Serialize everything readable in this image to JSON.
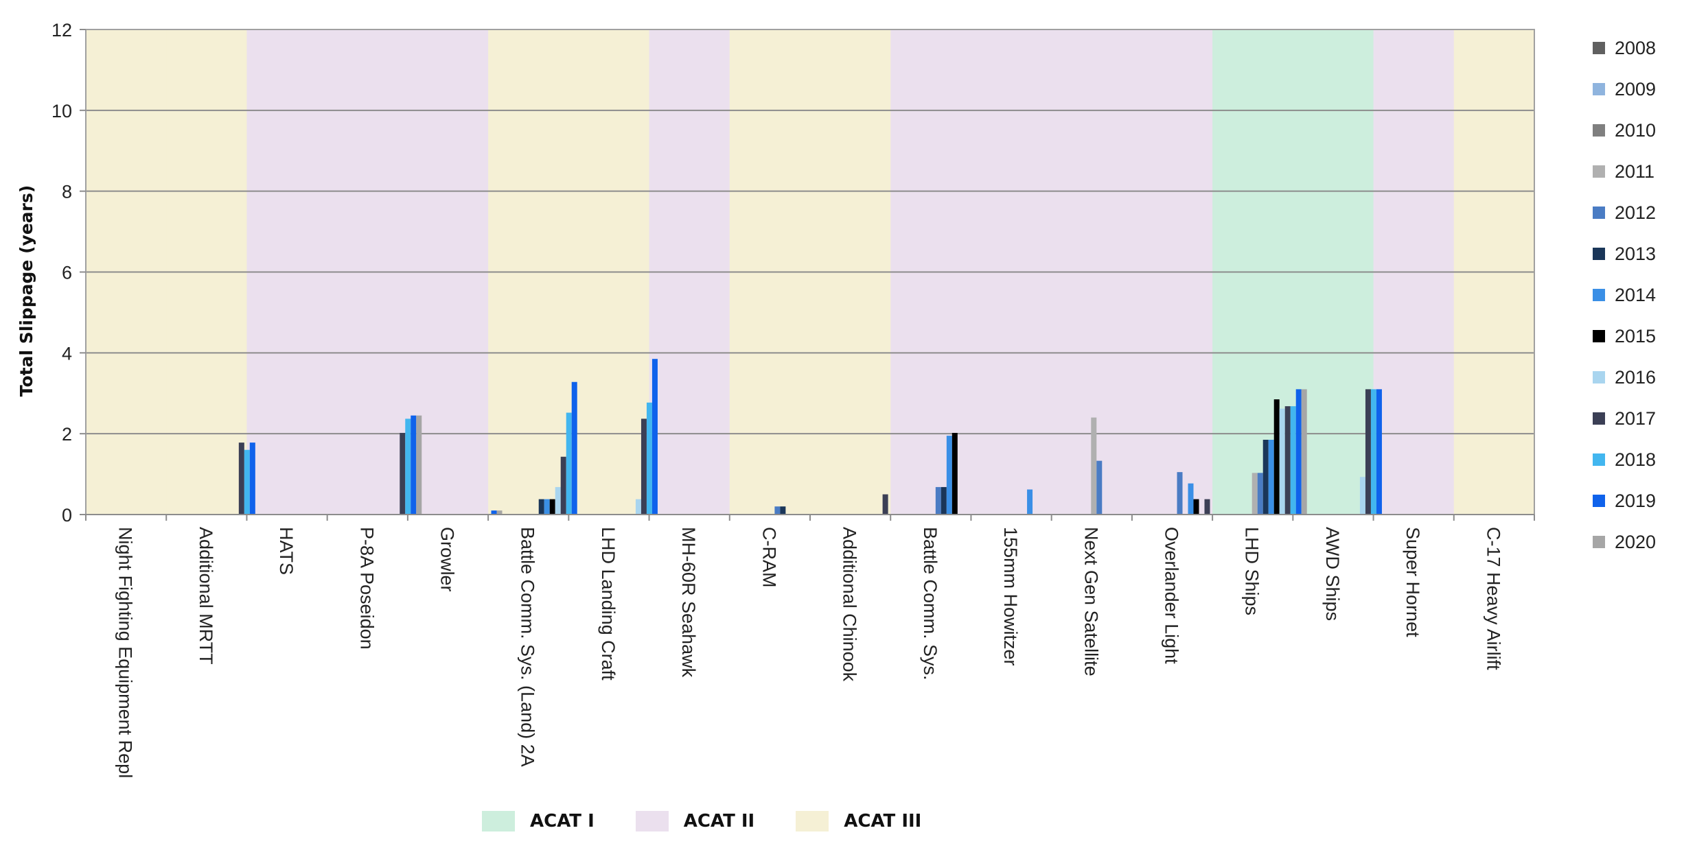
{
  "chart_data": {
    "type": "bar",
    "title": "",
    "xlabel": "",
    "ylabel": "Total Slippage (years)",
    "ylim": [
      0,
      12
    ],
    "yticks": [
      0,
      2,
      4,
      6,
      8,
      10,
      12
    ],
    "grid": true,
    "legend_position": "right",
    "categories": [
      "Night Fighting Equipment Repl",
      "Additional MRTT",
      "HATS",
      "P-8A Poseidon",
      "Growler",
      "Battle Comm. Sys. (Land) 2A",
      "LHD Landing Craft",
      "MH-60R Seahawk",
      "C-RAM",
      "Additional Chinook",
      "Battle Comm. Sys.",
      "155mm Howitzer",
      "Next Gen Satellite",
      "Overlander Light",
      "LHD Ships",
      "AWD Ships",
      "Super Hornet",
      "C-17 Heavy Airlift"
    ],
    "category_acat": [
      "ACAT III",
      "ACAT III",
      "ACAT II",
      "ACAT II",
      "ACAT II",
      "ACAT III",
      "ACAT III",
      "ACAT II",
      "ACAT III",
      "ACAT III",
      "ACAT II",
      "ACAT II",
      "ACAT II",
      "ACAT II",
      "ACAT I",
      "ACAT I",
      "ACAT II",
      "ACAT III"
    ],
    "series": [
      {
        "name": "2008",
        "color": "#606060",
        "values": [
          0,
          0,
          0,
          0,
          0,
          0,
          0,
          0,
          0,
          0,
          0,
          0,
          0,
          0,
          0,
          0,
          0,
          0
        ]
      },
      {
        "name": "2009",
        "color": "#8fb4de",
        "values": [
          0,
          0,
          0,
          0,
          0,
          0,
          0,
          0,
          0,
          0,
          0,
          0,
          0,
          0,
          0,
          0,
          0,
          0
        ]
      },
      {
        "name": "2010",
        "color": "#7f7f7f",
        "values": [
          0,
          0,
          0,
          0,
          0,
          0,
          0,
          0,
          0,
          0,
          0,
          0,
          0,
          0,
          0,
          0,
          0,
          0
        ]
      },
      {
        "name": "2011",
        "color": "#b0b0b0",
        "values": [
          0,
          0,
          0,
          0,
          0,
          0,
          0,
          0,
          0,
          0,
          0,
          0,
          2.4,
          0,
          1.03,
          0,
          0,
          0
        ]
      },
      {
        "name": "2012",
        "color": "#4a7cc4",
        "values": [
          0,
          0,
          0,
          0,
          0,
          0,
          0,
          0,
          0.2,
          0,
          0.68,
          0,
          1.33,
          1.05,
          1.03,
          0,
          0,
          0
        ]
      },
      {
        "name": "2013",
        "color": "#1a3659",
        "values": [
          0,
          0,
          0,
          0,
          0,
          0.38,
          0,
          0,
          0.2,
          0,
          0.68,
          0,
          0,
          0,
          1.85,
          0,
          0,
          0
        ]
      },
      {
        "name": "2014",
        "color": "#3a8fe6",
        "values": [
          0,
          0,
          0,
          0,
          0,
          0.38,
          0,
          0,
          0,
          0,
          1.95,
          0.62,
          0,
          0.77,
          1.85,
          0,
          0,
          0
        ]
      },
      {
        "name": "2015",
        "color": "#000000",
        "values": [
          0,
          0,
          0,
          0,
          0,
          0.38,
          0,
          0,
          0,
          0,
          2.02,
          0,
          0,
          0.38,
          2.85,
          0,
          0,
          0
        ]
      },
      {
        "name": "2016",
        "color": "#a9d5ef",
        "values": [
          0,
          0,
          0,
          0,
          0,
          0.68,
          0.38,
          0,
          0,
          0,
          0,
          0,
          0,
          0,
          2.62,
          0.93,
          0,
          0
        ]
      },
      {
        "name": "2017",
        "color": "#3b3f55",
        "values": [
          0,
          1.78,
          0,
          2.02,
          0,
          1.43,
          2.37,
          0,
          0,
          0.5,
          0,
          0,
          0,
          0.38,
          2.68,
          3.1,
          0,
          0
        ]
      },
      {
        "name": "2018",
        "color": "#42b6ef",
        "values": [
          0,
          1.6,
          0,
          2.37,
          0,
          2.52,
          2.77,
          0,
          0,
          0,
          0,
          0,
          0,
          0,
          2.68,
          3.1,
          0,
          0
        ]
      },
      {
        "name": "2019",
        "color": "#0f62eb",
        "values": [
          0,
          1.78,
          0,
          2.45,
          0.1,
          3.28,
          3.85,
          0,
          0,
          0,
          0,
          0,
          0,
          0,
          3.1,
          3.1,
          0,
          0
        ]
      },
      {
        "name": "2020",
        "color": "#a6a6a6",
        "values": [
          0,
          0,
          0,
          2.45,
          0.1,
          0,
          0,
          0,
          0,
          0,
          0,
          0,
          0,
          0,
          3.1,
          0,
          0,
          0
        ]
      }
    ],
    "acat_legend": [
      {
        "label": "ACAT I",
        "color": "#cdeedd"
      },
      {
        "label": "ACAT II",
        "color": "#ebe0ee"
      },
      {
        "label": "ACAT III",
        "color": "#f5f0d5"
      }
    ]
  }
}
